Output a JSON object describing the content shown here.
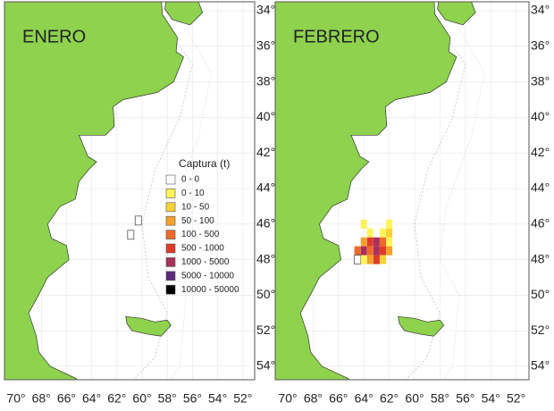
{
  "legend": {
    "title": "Captura  (t)",
    "items": [
      {
        "label": "0 - 0",
        "color": "#ffffff"
      },
      {
        "label": "0 - 10",
        "color": "#fff35a"
      },
      {
        "label": "10 - 50",
        "color": "#f9d23a"
      },
      {
        "label": "50 - 100",
        "color": "#f5a02a"
      },
      {
        "label": "100 - 500",
        "color": "#ee6a2a"
      },
      {
        "label": "500 - 1000",
        "color": "#e03a2a"
      },
      {
        "label": "1000 - 5000",
        "color": "#a8305a"
      },
      {
        "label": "5000 - 10000",
        "color": "#5a2a7a"
      },
      {
        "label": "10000 - 50000",
        "color": "#000000"
      }
    ]
  },
  "lon_labels": [
    "70°",
    "68°",
    "66°",
    "64°",
    "62°",
    "60°",
    "58°",
    "56°",
    "54°",
    "52°"
  ],
  "lat_labels": [
    "34°",
    "36°",
    "38°",
    "40°",
    "42°",
    "44°",
    "46°",
    "48°",
    "50°",
    "52°",
    "54°"
  ],
  "panels": [
    {
      "title": "ENERO",
      "cells": [
        {
          "lon": -60.3,
          "lat": -45.8,
          "color": "#ffffff"
        },
        {
          "lon": -60.9,
          "lat": -46.6,
          "color": "#ffffff"
        }
      ]
    },
    {
      "title": "FEBRERO",
      "cells": [
        {
          "lon": -64.0,
          "lat": -46.0,
          "color": "#fff35a"
        },
        {
          "lon": -62.0,
          "lat": -46.0,
          "color": "#fff35a"
        },
        {
          "lon": -63.5,
          "lat": -46.5,
          "color": "#fff35a"
        },
        {
          "lon": -62.5,
          "lat": -46.5,
          "color": "#fff35a"
        },
        {
          "lon": -62.0,
          "lat": -46.5,
          "color": "#f9d23a"
        },
        {
          "lon": -64.0,
          "lat": -47.0,
          "color": "#f5a02a"
        },
        {
          "lon": -63.5,
          "lat": -47.0,
          "color": "#e03a2a"
        },
        {
          "lon": -63.0,
          "lat": -47.0,
          "color": "#a8305a"
        },
        {
          "lon": -62.5,
          "lat": -47.0,
          "color": "#ee6a2a"
        },
        {
          "lon": -62.0,
          "lat": -47.0,
          "color": "#fff35a"
        },
        {
          "lon": -64.5,
          "lat": -47.5,
          "color": "#ee6a2a"
        },
        {
          "lon": -64.0,
          "lat": -47.5,
          "color": "#a8305a"
        },
        {
          "lon": -63.5,
          "lat": -47.5,
          "color": "#ee6a2a"
        },
        {
          "lon": -63.0,
          "lat": -47.5,
          "color": "#a8305a"
        },
        {
          "lon": -62.5,
          "lat": -47.5,
          "color": "#e03a2a"
        },
        {
          "lon": -62.0,
          "lat": -47.5,
          "color": "#f5a02a"
        },
        {
          "lon": -64.5,
          "lat": -48.0,
          "color": "#ffffff"
        },
        {
          "lon": -64.0,
          "lat": -48.0,
          "color": "#fff35a"
        },
        {
          "lon": -63.5,
          "lat": -48.0,
          "color": "#f5a02a"
        },
        {
          "lon": -63.0,
          "lat": -48.0,
          "color": "#e03a2a"
        },
        {
          "lon": -62.5,
          "lat": -48.0,
          "color": "#f9d23a"
        }
      ]
    }
  ]
}
